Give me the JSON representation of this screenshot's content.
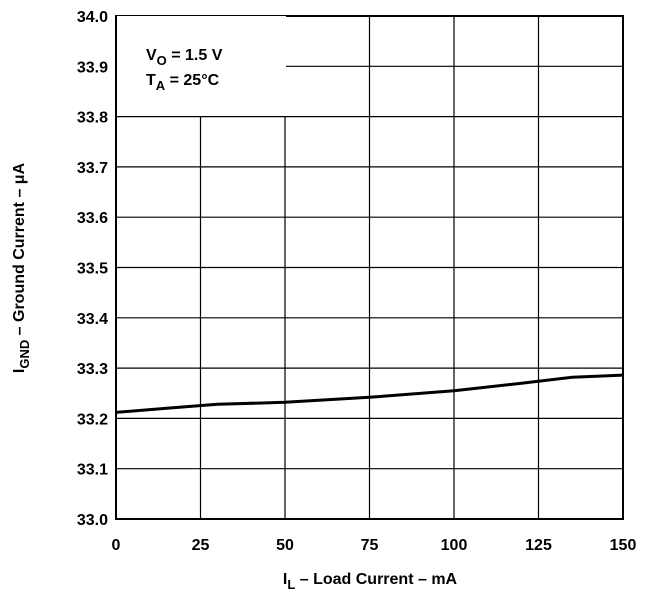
{
  "chart_data": {
    "type": "line",
    "title": "",
    "xlabel": {
      "main": "I",
      "sub": "L",
      "rest": " – Load Current – mA"
    },
    "ylabel": {
      "main": "I",
      "sub": "GND",
      "rest": " – Ground Current – μA"
    },
    "xlim": [
      0,
      150
    ],
    "ylim": [
      33.0,
      34.0
    ],
    "xticks": [
      0,
      25,
      50,
      75,
      100,
      125,
      150
    ],
    "xtick_labels": [
      "0",
      "25",
      "50",
      "75",
      "100",
      "125",
      "150"
    ],
    "yticks": [
      33.0,
      33.1,
      33.2,
      33.3,
      33.4,
      33.5,
      33.6,
      33.7,
      33.8,
      33.9,
      34.0
    ],
    "ytick_labels": [
      "33.0",
      "33.1",
      "33.2",
      "33.3",
      "33.4",
      "33.5",
      "33.6",
      "33.7",
      "33.8",
      "33.9",
      "34.0"
    ],
    "grid": true,
    "annotation": {
      "line1": {
        "main": "V",
        "sub": "O",
        "rest": " = 1.5 V"
      },
      "line2": {
        "main": "T",
        "sub": "A",
        "rest": " = 25°C"
      }
    },
    "series": [
      {
        "x": [
          0,
          15,
          30,
          50,
          75,
          100,
          120,
          135,
          150
        ],
        "y": [
          33.212,
          33.22,
          33.228,
          33.232,
          33.242,
          33.255,
          33.27,
          33.282,
          33.286
        ]
      }
    ]
  }
}
